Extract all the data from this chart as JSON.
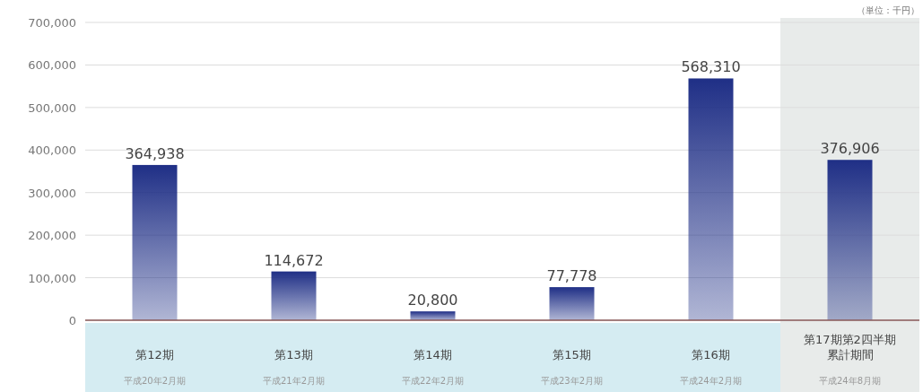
{
  "chart_data": {
    "type": "bar",
    "categories": [
      "第12期",
      "第13期",
      "第14期",
      "第15期",
      "第16期",
      "第17期第2四半期累計期間"
    ],
    "values": [
      364938,
      114672,
      20800,
      77778,
      568310,
      376906
    ],
    "color": "#1f2f86",
    "ylim": [
      0,
      700000
    ],
    "yticks": [
      {
        "value": 0,
        "label": "0"
      },
      {
        "value": 100000,
        "label": "100,000"
      },
      {
        "value": 200000,
        "label": "200,000"
      },
      {
        "value": 300000,
        "label": "300,000"
      },
      {
        "value": 400000,
        "label": "400,000"
      },
      {
        "value": 500000,
        "label": "500,000"
      },
      {
        "value": 600000,
        "label": "600,000"
      },
      {
        "value": 700000,
        "label": "700,000"
      }
    ],
    "value_labels": [
      "364,938",
      "114,672",
      "20,800",
      "77,778",
      "568,310",
      "376,906"
    ],
    "annotations": [
      "（単位：千円）",
      "平成20年2月期",
      "平成21年2月期",
      "平成22年2月期",
      "平成23年2月期",
      "平成24年2月期",
      "平成24年8月期"
    ],
    "bands": [
      {
        "axis": "x",
        "from": "第17期第2四半期累計期間",
        "to": "第17期第2四半期累計期間",
        "color": "#e8ebea"
      }
    ],
    "grid": "y"
  }
}
